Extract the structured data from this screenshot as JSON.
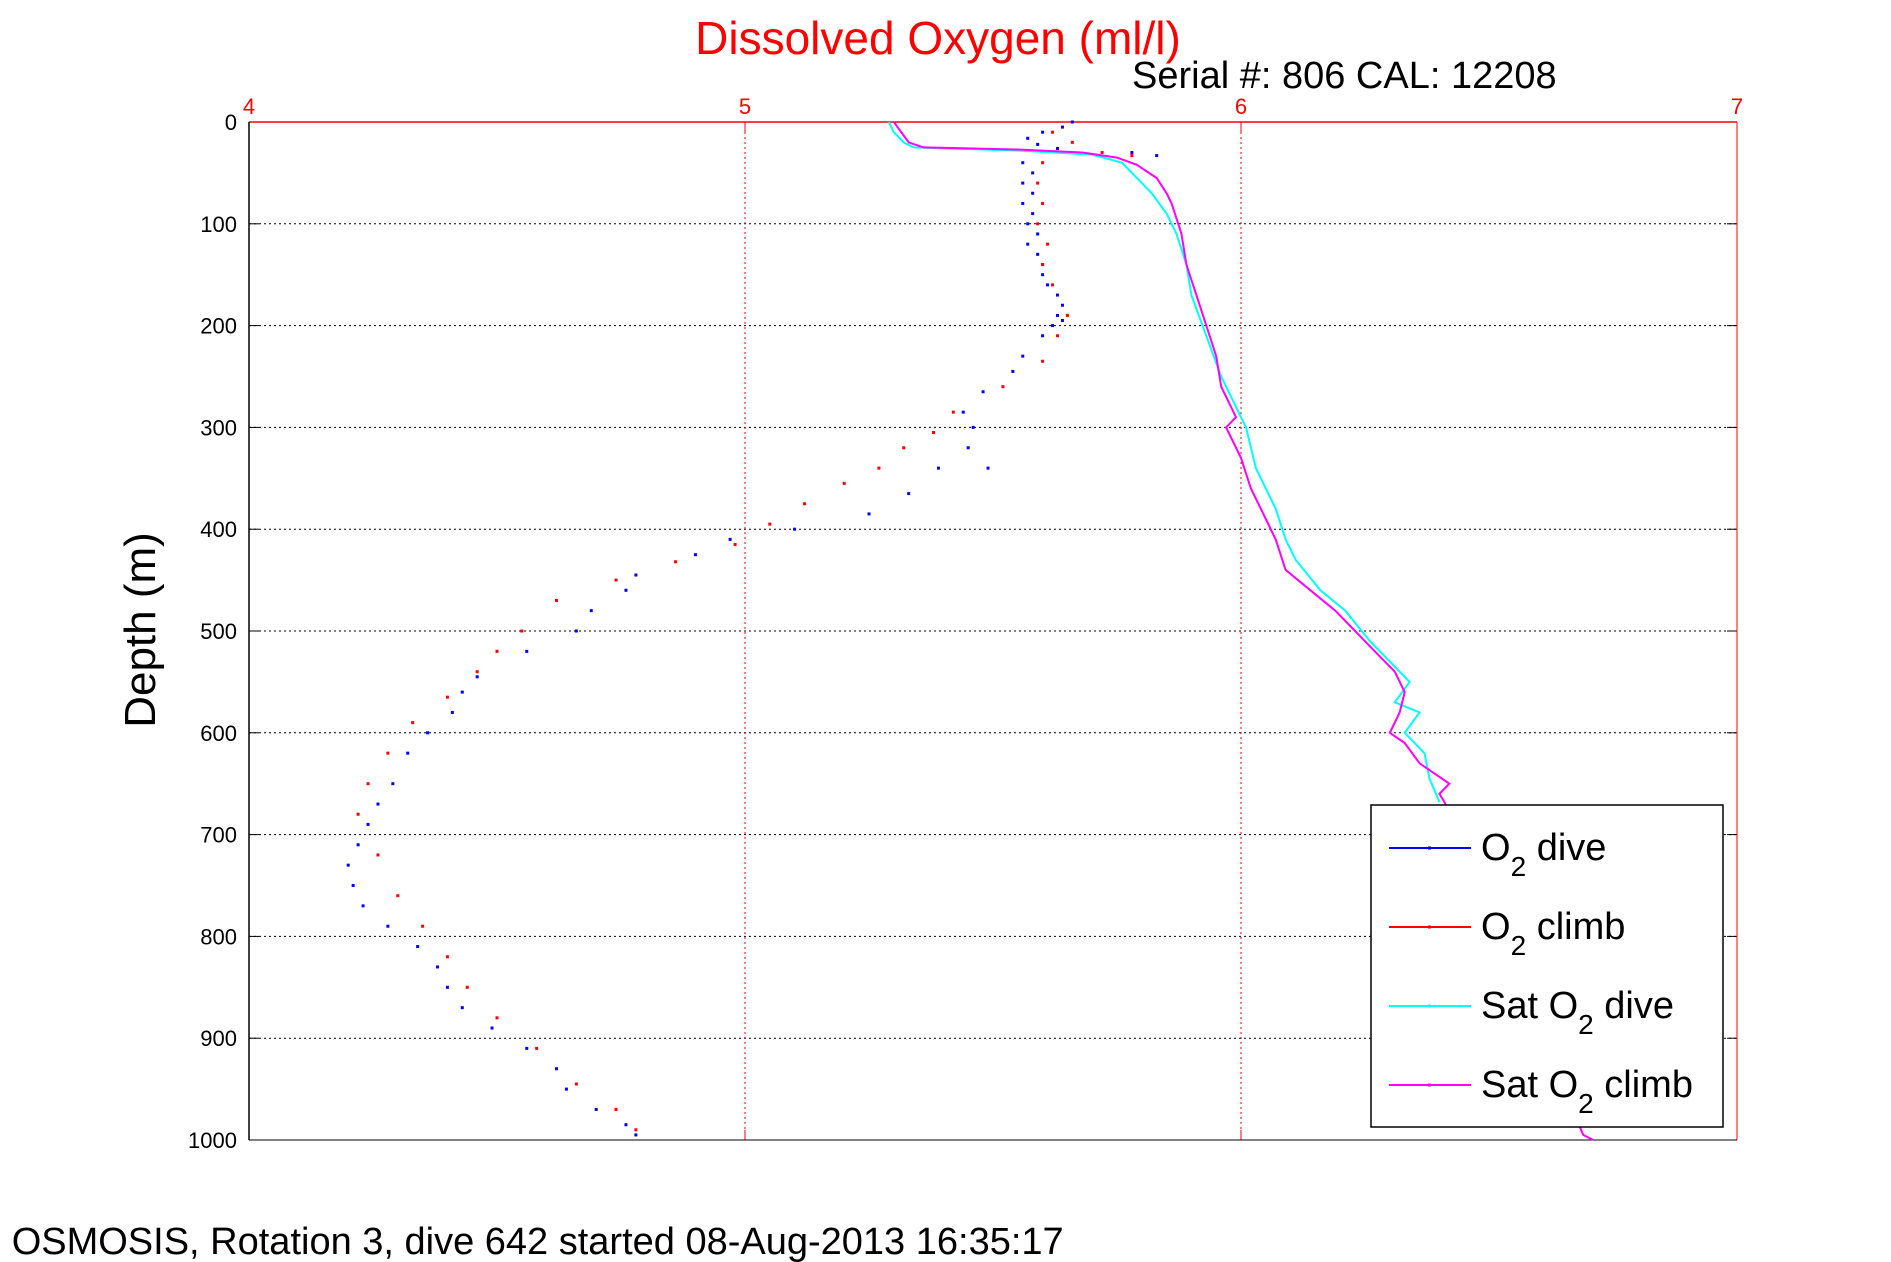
{
  "chart_data": {
    "type": "scatter",
    "title": "Dissolved Oxygen (ml/l)",
    "subtitle": "Serial #: 806  CAL: 12208",
    "ylabel": "Depth (m)",
    "footer": "6 OSMOSIS, Rotation 3, dive 642 started 08-Aug-2013 16:35:17",
    "x_axis_position": "top",
    "y_reversed": true,
    "xlim": [
      4,
      7
    ],
    "ylim": [
      0,
      1000
    ],
    "x_ticks": [
      "4",
      "5",
      "6",
      "7"
    ],
    "y_ticks": [
      "0",
      "100",
      "200",
      "300",
      "400",
      "500",
      "600",
      "700",
      "800",
      "900",
      "1000"
    ],
    "grid": true,
    "legend_position": "bottom-right",
    "colors": {
      "title": "#ff0000",
      "x_axis": "#ff0000",
      "x_grid": "#ff0000",
      "y_grid": "#000000",
      "text": "#000000"
    },
    "series": [
      {
        "name": "O₂ dive",
        "legend_main": "O",
        "legend_sub": "2",
        "legend_rest": " dive",
        "color": "#0000ff",
        "style": "points",
        "points": [
          [
            5.66,
            0
          ],
          [
            5.64,
            5
          ],
          [
            5.6,
            10
          ],
          [
            5.57,
            16
          ],
          [
            5.59,
            22
          ],
          [
            5.63,
            26
          ],
          [
            5.78,
            30
          ],
          [
            5.83,
            33
          ],
          [
            5.56,
            40
          ],
          [
            5.58,
            50
          ],
          [
            5.56,
            60
          ],
          [
            5.58,
            70
          ],
          [
            5.56,
            80
          ],
          [
            5.58,
            90
          ],
          [
            5.57,
            100
          ],
          [
            5.59,
            110
          ],
          [
            5.57,
            120
          ],
          [
            5.59,
            130
          ],
          [
            5.6,
            140
          ],
          [
            5.6,
            150
          ],
          [
            5.61,
            160
          ],
          [
            5.63,
            170
          ],
          [
            5.64,
            180
          ],
          [
            5.63,
            190
          ],
          [
            5.64,
            195
          ],
          [
            5.62,
            200
          ],
          [
            5.6,
            210
          ],
          [
            5.56,
            230
          ],
          [
            5.54,
            245
          ],
          [
            5.48,
            265
          ],
          [
            5.44,
            285
          ],
          [
            5.46,
            300
          ],
          [
            5.45,
            320
          ],
          [
            5.39,
            340
          ],
          [
            5.49,
            340
          ],
          [
            5.33,
            365
          ],
          [
            5.25,
            385
          ],
          [
            5.1,
            400
          ],
          [
            4.97,
            410
          ],
          [
            4.9,
            425
          ],
          [
            4.78,
            445
          ],
          [
            4.76,
            460
          ],
          [
            4.69,
            480
          ],
          [
            4.66,
            500
          ],
          [
            4.56,
            520
          ],
          [
            4.46,
            545
          ],
          [
            4.43,
            560
          ],
          [
            4.41,
            580
          ],
          [
            4.36,
            600
          ],
          [
            4.32,
            620
          ],
          [
            4.29,
            650
          ],
          [
            4.26,
            670
          ],
          [
            4.24,
            690
          ],
          [
            4.22,
            710
          ],
          [
            4.2,
            730
          ],
          [
            4.21,
            750
          ],
          [
            4.23,
            770
          ],
          [
            4.28,
            790
          ],
          [
            4.34,
            810
          ],
          [
            4.38,
            830
          ],
          [
            4.4,
            850
          ],
          [
            4.43,
            870
          ],
          [
            4.49,
            890
          ],
          [
            4.56,
            910
          ],
          [
            4.62,
            930
          ],
          [
            4.64,
            950
          ],
          [
            4.7,
            970
          ],
          [
            4.76,
            985
          ],
          [
            4.78,
            995
          ]
        ]
      },
      {
        "name": "O₂ climb",
        "legend_main": "O",
        "legend_sub": "2",
        "legend_rest": " climb",
        "color": "#ff0000",
        "style": "points",
        "points": [
          [
            5.62,
            10
          ],
          [
            5.66,
            20
          ],
          [
            5.72,
            30
          ],
          [
            5.78,
            33
          ],
          [
            5.6,
            40
          ],
          [
            5.59,
            60
          ],
          [
            5.6,
            80
          ],
          [
            5.59,
            100
          ],
          [
            5.61,
            120
          ],
          [
            5.6,
            140
          ],
          [
            5.62,
            160
          ],
          [
            5.65,
            190
          ],
          [
            5.63,
            210
          ],
          [
            5.6,
            235
          ],
          [
            5.52,
            260
          ],
          [
            5.42,
            285
          ],
          [
            5.38,
            305
          ],
          [
            5.32,
            320
          ],
          [
            5.27,
            340
          ],
          [
            5.2,
            355
          ],
          [
            5.12,
            375
          ],
          [
            5.05,
            395
          ],
          [
            4.98,
            415
          ],
          [
            4.86,
            432
          ],
          [
            4.74,
            450
          ],
          [
            4.62,
            470
          ],
          [
            4.55,
            500
          ],
          [
            4.5,
            520
          ],
          [
            4.46,
            540
          ],
          [
            4.4,
            565
          ],
          [
            4.33,
            590
          ],
          [
            4.28,
            620
          ],
          [
            4.24,
            650
          ],
          [
            4.22,
            680
          ],
          [
            4.26,
            720
          ],
          [
            4.3,
            760
          ],
          [
            4.35,
            790
          ],
          [
            4.4,
            820
          ],
          [
            4.44,
            850
          ],
          [
            4.5,
            880
          ],
          [
            4.58,
            910
          ],
          [
            4.66,
            945
          ],
          [
            4.74,
            970
          ],
          [
            4.78,
            990
          ]
        ]
      },
      {
        "name": "Sat O₂ dive",
        "legend_main": "Sat O",
        "legend_sub": "2",
        "legend_rest": " dive",
        "color": "#00ffff",
        "style": "line",
        "points": [
          [
            5.29,
            0
          ],
          [
            5.3,
            10
          ],
          [
            5.32,
            20
          ],
          [
            5.34,
            25
          ],
          [
            5.55,
            28
          ],
          [
            5.7,
            32
          ],
          [
            5.76,
            40
          ],
          [
            5.78,
            50
          ],
          [
            5.8,
            60
          ],
          [
            5.82,
            70
          ],
          [
            5.85,
            90
          ],
          [
            5.87,
            110
          ],
          [
            5.89,
            140
          ],
          [
            5.9,
            170
          ],
          [
            5.93,
            210
          ],
          [
            5.96,
            250
          ],
          [
            5.99,
            280
          ],
          [
            6.01,
            300
          ],
          [
            6.03,
            340
          ],
          [
            6.07,
            380
          ],
          [
            6.09,
            410
          ],
          [
            6.11,
            430
          ],
          [
            6.16,
            460
          ],
          [
            6.21,
            480
          ],
          [
            6.26,
            510
          ],
          [
            6.3,
            530
          ],
          [
            6.34,
            550
          ],
          [
            6.31,
            570
          ],
          [
            6.36,
            580
          ],
          [
            6.33,
            600
          ],
          [
            6.37,
            620
          ],
          [
            6.38,
            645
          ],
          [
            6.4,
            668
          ]
        ]
      },
      {
        "name": "Sat O₂ climb",
        "legend_main": "Sat O",
        "legend_sub": "2",
        "legend_rest": " climb",
        "color": "#ff00ff",
        "style": "line",
        "points": [
          [
            5.3,
            0
          ],
          [
            5.33,
            20
          ],
          [
            5.36,
            25
          ],
          [
            5.55,
            27
          ],
          [
            5.68,
            30
          ],
          [
            5.75,
            35
          ],
          [
            5.79,
            42
          ],
          [
            5.83,
            55
          ],
          [
            5.85,
            70
          ],
          [
            5.86,
            80
          ],
          [
            5.88,
            110
          ],
          [
            5.89,
            140
          ],
          [
            5.91,
            170
          ],
          [
            5.93,
            200
          ],
          [
            5.95,
            230
          ],
          [
            5.96,
            260
          ],
          [
            5.99,
            290
          ],
          [
            5.97,
            300
          ],
          [
            6.0,
            330
          ],
          [
            6.02,
            360
          ],
          [
            6.05,
            390
          ],
          [
            6.07,
            410
          ],
          [
            6.09,
            440
          ],
          [
            6.14,
            460
          ],
          [
            6.19,
            480
          ],
          [
            6.23,
            500
          ],
          [
            6.27,
            520
          ],
          [
            6.31,
            540
          ],
          [
            6.33,
            560
          ],
          [
            6.32,
            580
          ],
          [
            6.31,
            590
          ],
          [
            6.3,
            600
          ],
          [
            6.33,
            610
          ],
          [
            6.36,
            630
          ],
          [
            6.42,
            650
          ],
          [
            6.4,
            660
          ],
          [
            6.41,
            668
          ],
          [
            6.69,
            995
          ],
          [
            6.71,
            1000
          ]
        ]
      }
    ]
  }
}
